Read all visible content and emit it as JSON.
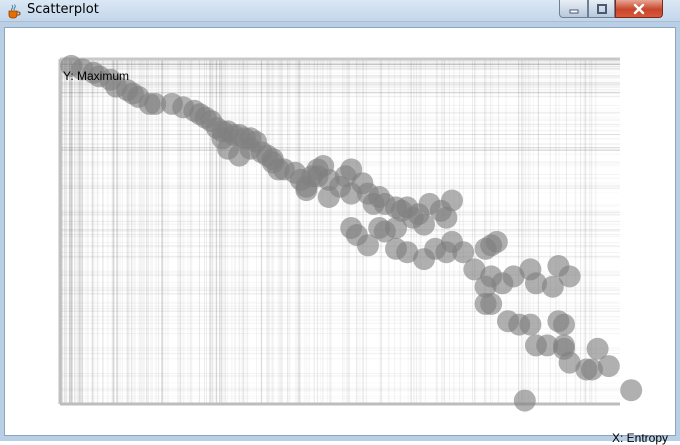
{
  "window": {
    "title": "Scatterplot",
    "buttons": {
      "minimize_icon": "minimize-icon",
      "maximize_icon": "maximize-icon",
      "close_icon": "close-icon"
    }
  },
  "chart_data": {
    "type": "scatter",
    "xlabel": "X: Entropy",
    "ylabel": "Y: Maximum",
    "xlim": [
      0,
      1
    ],
    "ylim": [
      0,
      1
    ],
    "grid": true,
    "marker_color": "#808080",
    "x": [
      0.02,
      0.04,
      0.06,
      0.07,
      0.09,
      0.1,
      0.12,
      0.13,
      0.14,
      0.16,
      0.17,
      0.2,
      0.22,
      0.24,
      0.25,
      0.26,
      0.27,
      0.28,
      0.29,
      0.3,
      0.31,
      0.32,
      0.33,
      0.34,
      0.35,
      0.29,
      0.3,
      0.32,
      0.34,
      0.36,
      0.37,
      0.38,
      0.39,
      0.38,
      0.4,
      0.42,
      0.43,
      0.44,
      0.45,
      0.46,
      0.47,
      0.48,
      0.5,
      0.51,
      0.52,
      0.46,
      0.44,
      0.48,
      0.52,
      0.54,
      0.55,
      0.56,
      0.57,
      0.58,
      0.6,
      0.61,
      0.62,
      0.63,
      0.64,
      0.65,
      0.66,
      0.68,
      0.69,
      0.7,
      0.52,
      0.57,
      0.6,
      0.53,
      0.55,
      0.58,
      0.6,
      0.62,
      0.65,
      0.67,
      0.69,
      0.7,
      0.72,
      0.74,
      0.76,
      0.77,
      0.78,
      0.77,
      0.76,
      0.79,
      0.81,
      0.84,
      0.85,
      0.88,
      0.89,
      0.91,
      0.76,
      0.77,
      0.8,
      0.82,
      0.84,
      0.85,
      0.87,
      0.89,
      0.9,
      0.9,
      0.91,
      0.95,
      0.98,
      1.02,
      0.83,
      0.94,
      0.9,
      0.96
    ],
    "y": [
      0.98,
      0.97,
      0.96,
      0.95,
      0.94,
      0.92,
      0.91,
      0.9,
      0.89,
      0.87,
      0.87,
      0.87,
      0.86,
      0.85,
      0.84,
      0.83,
      0.82,
      0.8,
      0.79,
      0.79,
      0.78,
      0.78,
      0.77,
      0.77,
      0.76,
      0.77,
      0.74,
      0.72,
      0.74,
      0.73,
      0.72,
      0.7,
      0.68,
      0.71,
      0.68,
      0.67,
      0.65,
      0.63,
      0.66,
      0.68,
      0.69,
      0.65,
      0.63,
      0.66,
      0.68,
      0.66,
      0.62,
      0.6,
      0.61,
      0.64,
      0.61,
      0.58,
      0.6,
      0.58,
      0.57,
      0.56,
      0.57,
      0.54,
      0.55,
      0.52,
      0.58,
      0.56,
      0.54,
      0.59,
      0.51,
      0.51,
      0.51,
      0.49,
      0.46,
      0.5,
      0.45,
      0.44,
      0.42,
      0.45,
      0.44,
      0.47,
      0.44,
      0.39,
      0.45,
      0.46,
      0.47,
      0.37,
      0.34,
      0.35,
      0.37,
      0.39,
      0.35,
      0.34,
      0.4,
      0.37,
      0.29,
      0.29,
      0.24,
      0.23,
      0.23,
      0.17,
      0.17,
      0.24,
      0.17,
      0.16,
      0.12,
      0.1,
      0.11,
      0.04,
      0.01,
      0.1,
      0.23,
      0.16
    ]
  }
}
